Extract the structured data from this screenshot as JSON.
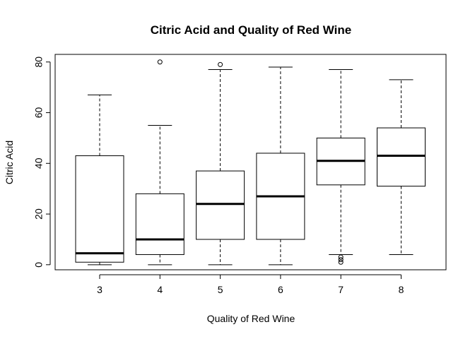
{
  "chart_data": {
    "type": "boxplot",
    "title": "Citric Acid and Quality of Red Wine",
    "xlabel": "Quality of Red Wine",
    "ylabel": "Citric Acid",
    "ylim": [
      -2,
      83
    ],
    "yticks": [
      0,
      20,
      40,
      60,
      80
    ],
    "ytick_labels": [
      "0",
      "20",
      "40",
      "60",
      "80"
    ],
    "grid": false,
    "legend": "none",
    "categories": [
      "3",
      "4",
      "5",
      "6",
      "7",
      "8"
    ],
    "boxes": [
      {
        "category": "3",
        "whisker_low": 0,
        "q1": 1,
        "median": 4.5,
        "q3": 43,
        "whisker_high": 67,
        "outliers": []
      },
      {
        "category": "4",
        "whisker_low": 0,
        "q1": 4,
        "median": 10,
        "q3": 28,
        "whisker_high": 55,
        "outliers": [
          80
        ]
      },
      {
        "category": "5",
        "whisker_low": 0,
        "q1": 10,
        "median": 24,
        "q3": 37,
        "whisker_high": 77,
        "outliers": [
          79
        ]
      },
      {
        "category": "6",
        "whisker_low": 0,
        "q1": 10,
        "median": 27,
        "q3": 44,
        "whisker_high": 78,
        "outliers": []
      },
      {
        "category": "7",
        "whisker_low": 4,
        "q1": 31.5,
        "median": 41,
        "q3": 50,
        "whisker_high": 77,
        "outliers": [
          3,
          2,
          1
        ]
      },
      {
        "category": "8",
        "whisker_low": 4,
        "q1": 31,
        "median": 43,
        "q3": 54,
        "whisker_high": 73,
        "outliers": []
      }
    ]
  }
}
